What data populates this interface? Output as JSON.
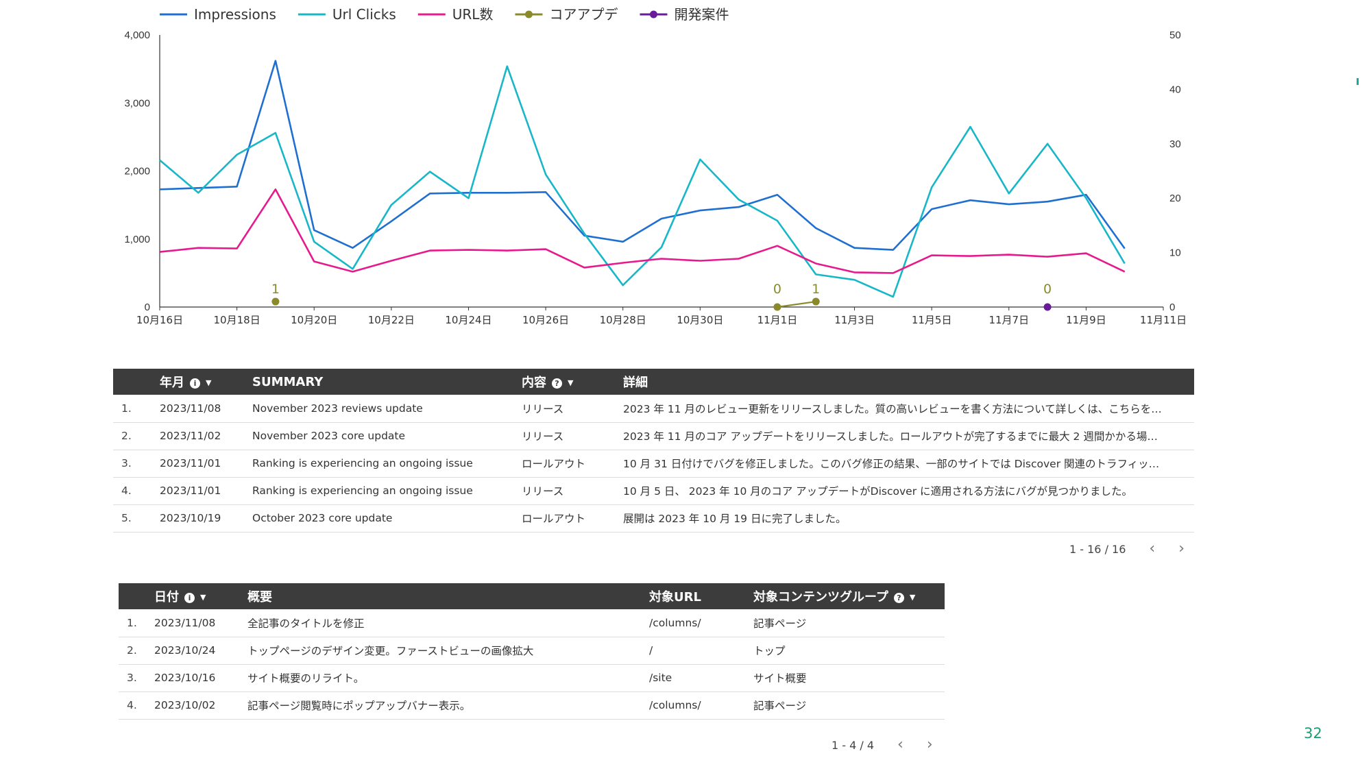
{
  "legend": [
    {
      "name": "Impressions",
      "color": "#1f6fd1"
    },
    {
      "name": "Url Clicks",
      "color": "#17b7c8"
    },
    {
      "name": "URL数",
      "color": "#e6198d"
    },
    {
      "name": "コアアプデ",
      "color": "#8a8a2a"
    },
    {
      "name": "開発案件",
      "color": "#6a1b9a"
    }
  ],
  "chart_data": {
    "type": "line",
    "x_tick_labels": [
      "10月16日",
      "10月18日",
      "10月20日",
      "10月22日",
      "10月24日",
      "10月26日",
      "10月28日",
      "10月30日",
      "11月1日",
      "11月3日",
      "11月5日",
      "11月7日",
      "11月9日",
      "11月11日"
    ],
    "x_range": [
      "2023-10-16",
      "2023-11-11"
    ],
    "y_left": {
      "range": [
        0,
        4000
      ],
      "ticks": [
        "0",
        "1,000",
        "2,000",
        "3,000",
        "4,000"
      ]
    },
    "y_right": {
      "range": [
        0,
        50
      ],
      "ticks": [
        "0",
        "10",
        "20",
        "30",
        "40",
        "50"
      ]
    },
    "series": [
      {
        "name": "Impressions",
        "color": "#1f6fd1",
        "axis": "left",
        "x": [
          "2023-10-16",
          "2023-10-17",
          "2023-10-18",
          "2023-10-19",
          "2023-10-20",
          "2023-10-21",
          "2023-10-22",
          "2023-10-23",
          "2023-10-24",
          "2023-10-25",
          "2023-10-26",
          "2023-10-27",
          "2023-10-28",
          "2023-10-29",
          "2023-10-30",
          "2023-10-31",
          "2023-11-01",
          "2023-11-02",
          "2023-11-03",
          "2023-11-04",
          "2023-11-05",
          "2023-11-06",
          "2023-11-07",
          "2023-11-08",
          "2023-11-09",
          "2023-11-10"
        ],
        "values": [
          1730,
          1750,
          1770,
          3620,
          1130,
          870,
          1260,
          1670,
          1680,
          1680,
          1690,
          1050,
          960,
          1300,
          1420,
          1470,
          1650,
          1160,
          870,
          840,
          1440,
          1570,
          1510,
          1550,
          1650,
          860
        ]
      },
      {
        "name": "Url Clicks",
        "color": "#17b7c8",
        "axis": "left",
        "x": [
          "2023-10-16",
          "2023-10-17",
          "2023-10-18",
          "2023-10-19",
          "2023-10-20",
          "2023-10-21",
          "2023-10-22",
          "2023-10-23",
          "2023-10-24",
          "2023-10-25",
          "2023-10-26",
          "2023-10-27",
          "2023-10-28",
          "2023-10-29",
          "2023-10-30",
          "2023-10-31",
          "2023-11-01",
          "2023-11-02",
          "2023-11-03",
          "2023-11-04",
          "2023-11-05",
          "2023-11-06",
          "2023-11-07",
          "2023-11-08",
          "2023-11-09",
          "2023-11-10"
        ],
        "values": [
          2160,
          1680,
          2240,
          2560,
          960,
          560,
          1500,
          1990,
          1600,
          3540,
          1950,
          1080,
          320,
          880,
          2170,
          1580,
          1270,
          480,
          400,
          150,
          1760,
          2650,
          1670,
          2400,
          1600,
          640
        ]
      },
      {
        "name": "URL数",
        "color": "#e6198d",
        "axis": "left",
        "x": [
          "2023-10-16",
          "2023-10-17",
          "2023-10-18",
          "2023-10-19",
          "2023-10-20",
          "2023-10-21",
          "2023-10-22",
          "2023-10-23",
          "2023-10-24",
          "2023-10-25",
          "2023-10-26",
          "2023-10-27",
          "2023-10-28",
          "2023-10-29",
          "2023-10-30",
          "2023-10-31",
          "2023-11-01",
          "2023-11-02",
          "2023-11-03",
          "2023-11-04",
          "2023-11-05",
          "2023-11-06",
          "2023-11-07",
          "2023-11-08",
          "2023-11-09",
          "2023-11-10"
        ],
        "values": [
          810,
          870,
          860,
          1730,
          670,
          520,
          680,
          830,
          840,
          830,
          850,
          580,
          650,
          710,
          680,
          710,
          900,
          640,
          510,
          500,
          760,
          750,
          770,
          740,
          790,
          520
        ]
      },
      {
        "name": "コアアプデ",
        "color": "#8a8a2a",
        "axis": "right",
        "x": [
          "2023-10-19",
          "2023-11-01",
          "2023-11-02"
        ],
        "values": [
          1,
          0,
          1
        ],
        "data_labels": [
          "1",
          "0",
          "1"
        ]
      },
      {
        "name": "開発案件",
        "color": "#6a1b9a",
        "axis": "right",
        "x": [
          "2023-11-08"
        ],
        "values": [
          0
        ],
        "data_labels": [
          "0"
        ]
      }
    ]
  },
  "updates_table": {
    "headers": {
      "ym": "年月",
      "summary": "SUMMARY",
      "content": "内容",
      "detail": "詳細"
    },
    "rows": [
      {
        "n": "1.",
        "ym": "2023/11/08",
        "summary": "November 2023 reviews update",
        "content": "リリース",
        "detail": "2023 年 11 月のレビュー更新をリリースしました。質の高いレビューを書く方法について詳しくは、こちらを…"
      },
      {
        "n": "2.",
        "ym": "2023/11/02",
        "summary": "November 2023 core update",
        "content": "リリース",
        "detail": "2023 年 11 月のコア アップデートをリリースしました。ロールアウトが完了するまでに最大 2 週間かかる場…"
      },
      {
        "n": "3.",
        "ym": "2023/11/01",
        "summary": "Ranking is experiencing an ongoing issue",
        "content": "ロールアウト",
        "detail": "10 月 31 日付けでバグを修正しました。このバグ修正の結果、一部のサイトでは Discover 関連のトラフィッ…"
      },
      {
        "n": "4.",
        "ym": "2023/11/01",
        "summary": "Ranking is experiencing an ongoing issue",
        "content": "リリース",
        "detail": "10 月 5 日、 2023 年 10 月のコア アップデートがDiscover に適用される方法にバグが見つかりました。"
      },
      {
        "n": "5.",
        "ym": "2023/10/19",
        "summary": "October 2023 core update",
        "content": "ロールアウト",
        "detail": "展開は 2023 年 10 月 19 日に完了しました。"
      }
    ],
    "pagination": "1 - 16 / 16"
  },
  "dev_table": {
    "headers": {
      "date": "日付",
      "overview": "概要",
      "url": "対象URL",
      "group": "対象コンテンツグループ"
    },
    "rows": [
      {
        "n": "1.",
        "date": "2023/11/08",
        "overview": "全記事のタイトルを修正",
        "url": "/columns/",
        "group": "記事ページ"
      },
      {
        "n": "2.",
        "date": "2023/10/24",
        "overview": "トップページのデザイン変更。ファーストビューの画像拡大",
        "url": "/",
        "group": "トップ"
      },
      {
        "n": "3.",
        "date": "2023/10/16",
        "overview": "サイト概要のリライト。",
        "url": "/site",
        "group": "サイト概要"
      },
      {
        "n": "4.",
        "date": "2023/10/02",
        "overview": "記事ページ閲覧時にポップアップバナー表示。",
        "url": "/columns/",
        "group": "記事ページ"
      }
    ],
    "pagination": "1 - 4 / 4"
  },
  "icons": {
    "info": "info-icon",
    "sort": "sort-down-icon",
    "prev": "chevron-left-icon",
    "next": "chevron-right-icon"
  },
  "slide": {
    "page_number": "32"
  }
}
